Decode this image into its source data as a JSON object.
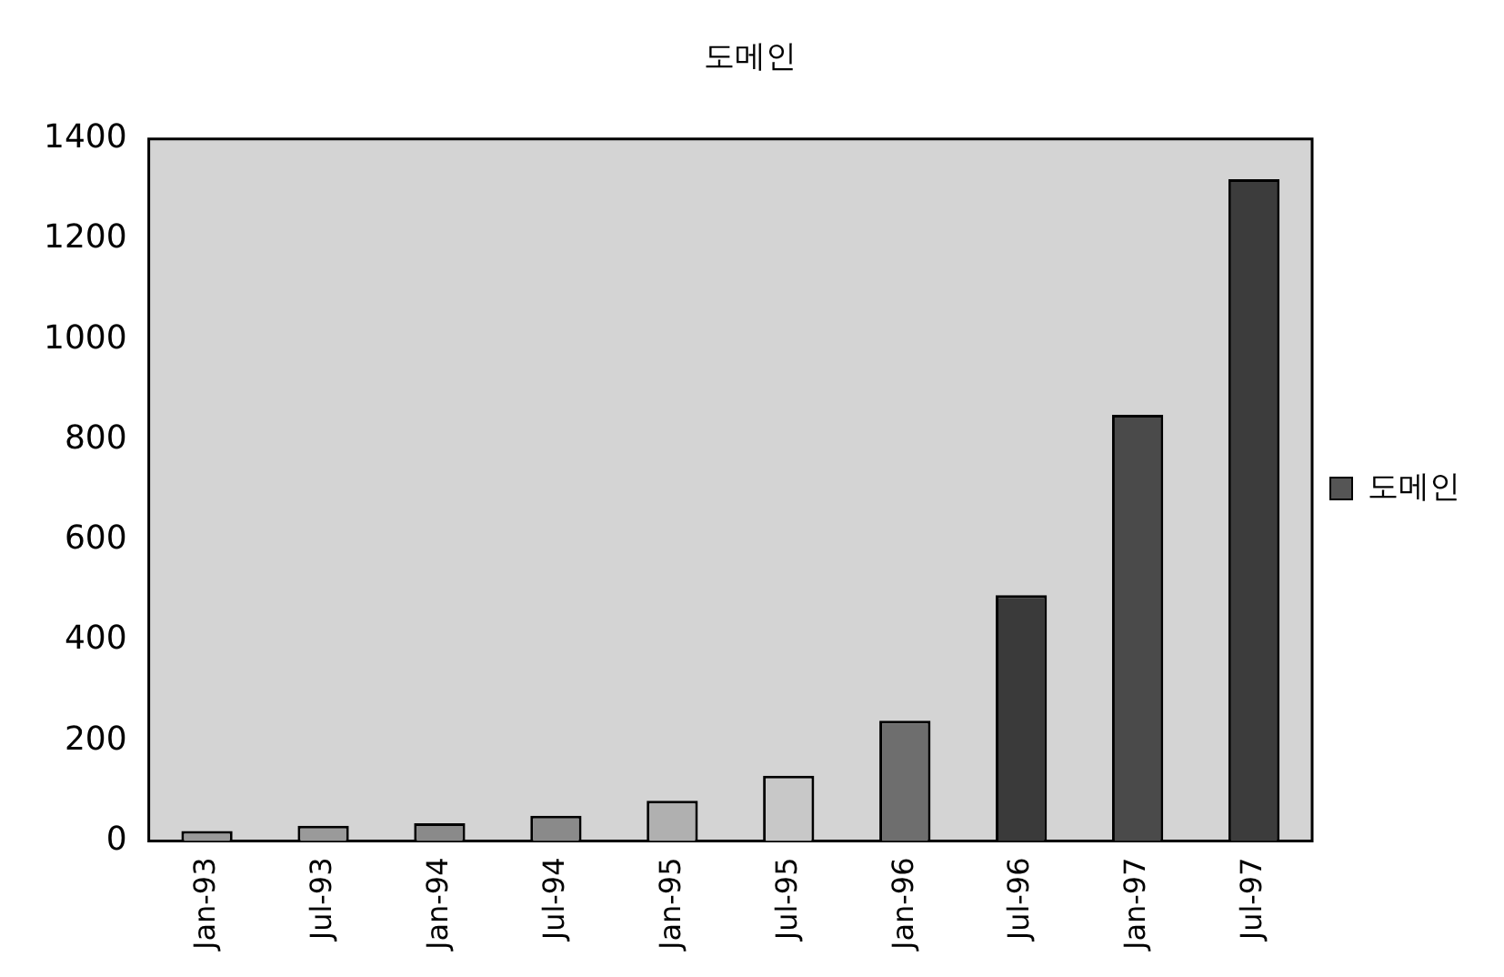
{
  "chart_data": {
    "type": "bar",
    "title": "도메인",
    "categories": [
      "Jan-93",
      "Jul-93",
      "Jan-94",
      "Jul-94",
      "Jan-95",
      "Jul-95",
      "Jan-96",
      "Jul-96",
      "Jan-97",
      "Jul-97"
    ],
    "series": [
      {
        "name": "도메인",
        "color": "#555555",
        "colors": [
          "#9a9a9a",
          "#9a9a9a",
          "#8a8a8a",
          "#8a8a8a",
          "#b0b0b0",
          "#c8c8c8",
          "#6e6e6e",
          "#3a3a3a",
          "#4a4a4a",
          "#3c3c3c"
        ],
        "values": [
          20,
          30,
          35,
          50,
          80,
          130,
          240,
          490,
          850,
          1320
        ]
      }
    ],
    "ylim": [
      0,
      1400
    ],
    "yticks": [
      0,
      200,
      400,
      600,
      800,
      1000,
      1200,
      1400
    ],
    "grid": false,
    "legend": "right"
  }
}
